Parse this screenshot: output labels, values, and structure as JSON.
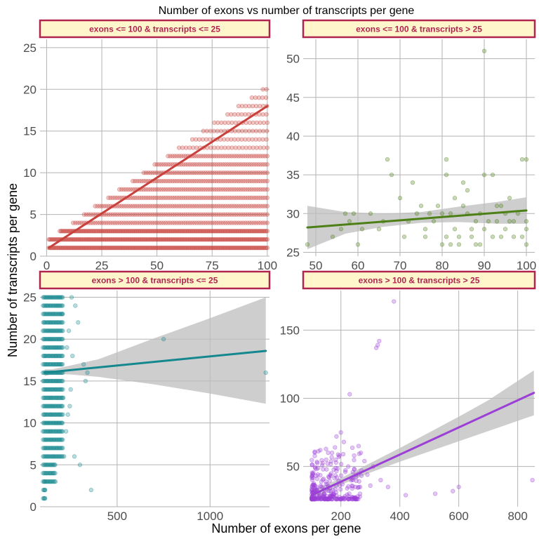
{
  "title": "Number of exons vs number of transcripts per gene",
  "xlabel": "Number of exons per gene",
  "ylabel": "Number of transcripts per gene",
  "colors": {
    "strip_fill": "#fff6cc",
    "strip_border": "#b0254f",
    "strip_text": "#b0254f",
    "grid": "#b3b3b3",
    "ribbon": "#bdbdbd"
  },
  "chart_data": [
    {
      "type": "scatter",
      "title": "exons <= 100 & transcripts <= 25",
      "color": "#c8413c",
      "xlim": [
        -3,
        101
      ],
      "ylim": [
        0,
        26
      ],
      "xticks": [
        0,
        25,
        50,
        75,
        100
      ],
      "yticks": [
        0,
        5,
        10,
        15,
        20,
        25
      ],
      "pattern": "dense",
      "trend": {
        "x": [
          1,
          100
        ],
        "y": [
          1,
          18
        ]
      },
      "ribbon": null
    },
    {
      "type": "scatter",
      "title": "exons <= 100 & transcripts > 25",
      "color": "#4d7f17",
      "xlim": [
        47,
        102
      ],
      "ylim": [
        24.5,
        52.5
      ],
      "xticks": [
        50,
        60,
        70,
        80,
        90,
        100
      ],
      "yticks": [
        25,
        30,
        35,
        40,
        45,
        50
      ],
      "pattern": "points",
      "points": [
        [
          48,
          26
        ],
        [
          54,
          27
        ],
        [
          56,
          28
        ],
        [
          57,
          30
        ],
        [
          58,
          29
        ],
        [
          59,
          30
        ],
        [
          60,
          26
        ],
        [
          61,
          28
        ],
        [
          63,
          30
        ],
        [
          65,
          28
        ],
        [
          66,
          29
        ],
        [
          67,
          37
        ],
        [
          68,
          35
        ],
        [
          70,
          32
        ],
        [
          71,
          27
        ],
        [
          72,
          29
        ],
        [
          73,
          34
        ],
        [
          74,
          30
        ],
        [
          75,
          31
        ],
        [
          76,
          28
        ],
        [
          76,
          27
        ],
        [
          77,
          30
        ],
        [
          78,
          29
        ],
        [
          79,
          31
        ],
        [
          80,
          26
        ],
        [
          80,
          30
        ],
        [
          81,
          35
        ],
        [
          81,
          37
        ],
        [
          81,
          27
        ],
        [
          82,
          26
        ],
        [
          82,
          30
        ],
        [
          83,
          32
        ],
        [
          83,
          28
        ],
        [
          84,
          26
        ],
        [
          84,
          27
        ],
        [
          85,
          31
        ],
        [
          85,
          34
        ],
        [
          86,
          33
        ],
        [
          86,
          30
        ],
        [
          87,
          27
        ],
        [
          87,
          28
        ],
        [
          88,
          29
        ],
        [
          88,
          26
        ],
        [
          89,
          26
        ],
        [
          89,
          30
        ],
        [
          90,
          51
        ],
        [
          90,
          35
        ],
        [
          90,
          28
        ],
        [
          91,
          29
        ],
        [
          92,
          35
        ],
        [
          92,
          27
        ],
        [
          93,
          31
        ],
        [
          93,
          29
        ],
        [
          94,
          27
        ],
        [
          94,
          31
        ],
        [
          95,
          28
        ],
        [
          95,
          30
        ],
        [
          96,
          32
        ],
        [
          96,
          29
        ],
        [
          97,
          27
        ],
        [
          97,
          29
        ],
        [
          98,
          30
        ],
        [
          99,
          37
        ],
        [
          99,
          27
        ],
        [
          100,
          37
        ],
        [
          100,
          28
        ],
        [
          100,
          29
        ],
        [
          100,
          26
        ]
      ],
      "trend": {
        "x": [
          48,
          100
        ],
        "y": [
          28.2,
          30.4
        ]
      },
      "ribbon": {
        "x": [
          48,
          57,
          66,
          75,
          84,
          93,
          100
        ],
        "lower": [
          25.4,
          27.4,
          28.3,
          28.8,
          28.9,
          28.7,
          28.7
        ],
        "upper": [
          31.0,
          30.2,
          30.0,
          30.2,
          30.9,
          31.5,
          32.1
        ]
      }
    },
    {
      "type": "scatter",
      "title": "exons > 100 & transcripts <= 25",
      "color": "#14888e",
      "xlim": [
        85,
        1320
      ],
      "ylim": [
        0,
        25.8
      ],
      "xticks": [
        500,
        1000
      ],
      "yticks": [
        0,
        5,
        10,
        15,
        20,
        25
      ],
      "pattern": "columns",
      "points": [
        [
          750,
          20
        ],
        [
          1300,
          16
        ],
        [
          360,
          2
        ],
        [
          300,
          5
        ],
        [
          330,
          15
        ],
        [
          340,
          16
        ],
        [
          320,
          17
        ],
        [
          290,
          22
        ],
        [
          275,
          24
        ],
        [
          255,
          25
        ],
        [
          240,
          21
        ],
        [
          230,
          19
        ],
        [
          260,
          18
        ],
        [
          250,
          14
        ],
        [
          245,
          12
        ],
        [
          235,
          11
        ],
        [
          225,
          9
        ],
        [
          270,
          6
        ],
        [
          215,
          6
        ],
        [
          205,
          23
        ],
        [
          210,
          13
        ],
        [
          110,
          1
        ],
        [
          108,
          3
        ],
        [
          112,
          2
        ]
      ],
      "trend": {
        "x": [
          110,
          1300
        ],
        "y": [
          16.0,
          18.6
        ]
      },
      "ribbon": {
        "x": [
          110,
          150,
          240,
          400,
          700,
          1000,
          1300
        ],
        "lower": [
          15.6,
          15.8,
          15.8,
          15.5,
          14.6,
          13.5,
          12.3
        ],
        "upper": [
          16.4,
          16.4,
          16.8,
          17.6,
          20.1,
          22.5,
          25.0
        ]
      }
    },
    {
      "type": "scatter",
      "title": "exons > 100 & transcripts > 25",
      "color": "#9b3fd6",
      "xlim": [
        72,
        858
      ],
      "ylim": [
        20.5,
        179
      ],
      "xticks": [
        200,
        400,
        600,
        800
      ],
      "yticks": [
        50,
        100,
        150
      ],
      "pattern": "cloud",
      "points": [
        [
          380,
          171
        ],
        [
          330,
          142
        ],
        [
          325,
          139
        ],
        [
          320,
          137
        ],
        [
          230,
          103
        ],
        [
          200,
          75
        ],
        [
          185,
          72
        ],
        [
          210,
          68
        ],
        [
          260,
          65
        ],
        [
          170,
          60
        ],
        [
          150,
          55
        ],
        [
          195,
          58
        ],
        [
          245,
          58
        ],
        [
          280,
          54
        ],
        [
          310,
          50
        ],
        [
          270,
          47
        ],
        [
          290,
          44
        ],
        [
          335,
          40
        ],
        [
          300,
          36
        ],
        [
          360,
          35
        ],
        [
          600,
          35
        ],
        [
          580,
          32
        ],
        [
          850,
          40
        ],
        [
          420,
          29
        ],
        [
          520,
          30
        ],
        [
          240,
          42
        ],
        [
          225,
          50
        ],
        [
          215,
          46
        ],
        [
          140,
          48
        ],
        [
          130,
          62
        ],
        [
          180,
          64
        ],
        [
          160,
          42
        ],
        [
          205,
          37
        ],
        [
          250,
          35
        ],
        [
          265,
          30
        ]
      ],
      "trend": {
        "x": [
          101,
          855
        ],
        "y": [
          29,
          104
        ]
      },
      "ribbon": {
        "x": [
          101,
          200,
          300,
          400,
          500,
          600,
          700,
          855
        ],
        "lower": [
          26.0,
          36.5,
          45.5,
          53.5,
          61.0,
          68.5,
          76.0,
          87.5
        ],
        "upper": [
          32.0,
          41.5,
          52.5,
          63.5,
          75.0,
          86.5,
          98.5,
          120.5
        ]
      }
    }
  ]
}
